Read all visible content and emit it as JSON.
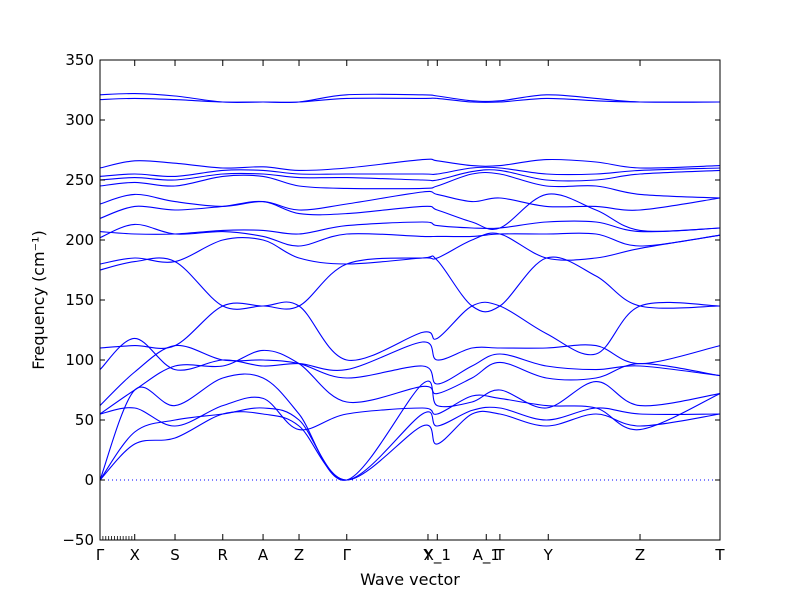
{
  "chart_data": {
    "type": "line",
    "xlabel": "Wave vector",
    "ylabel": "Frequency (cm⁻¹)",
    "ylim": [
      -50,
      350
    ],
    "yticks": [
      -50,
      0,
      50,
      100,
      150,
      200,
      250,
      300,
      350
    ],
    "xlim": [
      0,
      1
    ],
    "grid": false,
    "legend": "none",
    "line_color": "#0000ff",
    "zero_line": {
      "y": 0,
      "style": "dotted",
      "color": "#0000ff"
    },
    "high_symmetry_points": [
      {
        "label": "Γ",
        "x": 0.0
      },
      {
        "label": "X",
        "x": 0.056
      },
      {
        "label": "S",
        "x": 0.121
      },
      {
        "label": "R",
        "x": 0.198
      },
      {
        "label": "A",
        "x": 0.263
      },
      {
        "label": "Z",
        "x": 0.321
      },
      {
        "label": "Γ",
        "x": 0.398
      },
      {
        "label": "Y",
        "x": 0.529
      },
      {
        "label": "X_1",
        "x": 0.544
      },
      {
        "label": "A_1",
        "x": 0.623
      },
      {
        "label": "T",
        "x": 0.645
      },
      {
        "label": "Y",
        "x": 0.723
      },
      {
        "label": "Z",
        "x": 0.871
      },
      {
        "label": "T",
        "x": 1.0
      }
    ],
    "series": [
      {
        "values": [
          [
            0,
            0
          ],
          [
            0.056,
            30
          ],
          [
            0.121,
            35
          ],
          [
            0.198,
            55
          ],
          [
            0.263,
            55
          ],
          [
            0.321,
            45
          ],
          [
            0.398,
            0
          ],
          [
            0.52,
            45
          ],
          [
            0.544,
            30
          ],
          [
            0.6,
            55
          ],
          [
            0.645,
            55
          ],
          [
            0.72,
            45
          ],
          [
            0.8,
            55
          ],
          [
            0.871,
            45
          ],
          [
            1.0,
            55
          ]
        ]
      },
      {
        "values": [
          [
            0,
            0
          ],
          [
            0.056,
            40
          ],
          [
            0.121,
            50
          ],
          [
            0.198,
            55
          ],
          [
            0.263,
            60
          ],
          [
            0.321,
            50
          ],
          [
            0.398,
            0
          ],
          [
            0.52,
            55
          ],
          [
            0.544,
            45
          ],
          [
            0.6,
            58
          ],
          [
            0.645,
            60
          ],
          [
            0.72,
            50
          ],
          [
            0.8,
            60
          ],
          [
            0.871,
            55
          ],
          [
            1.0,
            55
          ]
        ]
      },
      {
        "values": [
          [
            0,
            0
          ],
          [
            0.056,
            75
          ],
          [
            0.121,
            62
          ],
          [
            0.198,
            85
          ],
          [
            0.263,
            85
          ],
          [
            0.321,
            55
          ],
          [
            0.398,
            0
          ],
          [
            0.52,
            80
          ],
          [
            0.544,
            62
          ],
          [
            0.6,
            65
          ],
          [
            0.645,
            75
          ],
          [
            0.72,
            60
          ],
          [
            0.8,
            82
          ],
          [
            0.871,
            62
          ],
          [
            1.0,
            72
          ]
        ]
      },
      {
        "values": [
          [
            0,
            55
          ],
          [
            0.056,
            60
          ],
          [
            0.121,
            45
          ],
          [
            0.198,
            62
          ],
          [
            0.263,
            68
          ],
          [
            0.321,
            42
          ],
          [
            0.398,
            55
          ],
          [
            0.52,
            60
          ],
          [
            0.544,
            55
          ],
          [
            0.6,
            70
          ],
          [
            0.645,
            68
          ],
          [
            0.72,
            62
          ],
          [
            0.8,
            60
          ],
          [
            0.871,
            42
          ],
          [
            1.0,
            72
          ]
        ]
      },
      {
        "values": [
          [
            0,
            55
          ],
          [
            0.056,
            75
          ],
          [
            0.121,
            95
          ],
          [
            0.198,
            95
          ],
          [
            0.263,
            108
          ],
          [
            0.321,
            97
          ],
          [
            0.398,
            65
          ],
          [
            0.52,
            78
          ],
          [
            0.544,
            72
          ],
          [
            0.6,
            85
          ],
          [
            0.645,
            98
          ],
          [
            0.72,
            85
          ],
          [
            0.8,
            85
          ],
          [
            0.871,
            97
          ],
          [
            1.0,
            87
          ]
        ]
      },
      {
        "values": [
          [
            0,
            62
          ],
          [
            0.056,
            90
          ],
          [
            0.121,
            112
          ],
          [
            0.198,
            100
          ],
          [
            0.263,
            100
          ],
          [
            0.321,
            97
          ],
          [
            0.398,
            85
          ],
          [
            0.52,
            95
          ],
          [
            0.544,
            80
          ],
          [
            0.6,
            95
          ],
          [
            0.645,
            105
          ],
          [
            0.72,
            95
          ],
          [
            0.8,
            92
          ],
          [
            0.871,
            95
          ],
          [
            1.0,
            87
          ]
        ]
      },
      {
        "values": [
          [
            0,
            92
          ],
          [
            0.056,
            118
          ],
          [
            0.121,
            92
          ],
          [
            0.198,
            100
          ],
          [
            0.263,
            95
          ],
          [
            0.321,
            97
          ],
          [
            0.398,
            92
          ],
          [
            0.52,
            115
          ],
          [
            0.544,
            100
          ],
          [
            0.6,
            110
          ],
          [
            0.645,
            110
          ],
          [
            0.72,
            110
          ],
          [
            0.8,
            112
          ],
          [
            0.871,
            97
          ],
          [
            1.0,
            112
          ]
        ]
      },
      {
        "values": [
          [
            0,
            110
          ],
          [
            0.056,
            112
          ],
          [
            0.121,
            112
          ],
          [
            0.198,
            145
          ],
          [
            0.263,
            145
          ],
          [
            0.321,
            145
          ],
          [
            0.398,
            100
          ],
          [
            0.52,
            123
          ],
          [
            0.544,
            118
          ],
          [
            0.6,
            145
          ],
          [
            0.645,
            145
          ],
          [
            0.72,
            122
          ],
          [
            0.8,
            105
          ],
          [
            0.871,
            145
          ],
          [
            1.0,
            145
          ]
        ]
      },
      {
        "values": [
          [
            0,
            175
          ],
          [
            0.056,
            182
          ],
          [
            0.121,
            182
          ],
          [
            0.198,
            145
          ],
          [
            0.263,
            145
          ],
          [
            0.321,
            145
          ],
          [
            0.398,
            180
          ],
          [
            0.52,
            185
          ],
          [
            0.544,
            183
          ],
          [
            0.6,
            145
          ],
          [
            0.645,
            145
          ],
          [
            0.72,
            185
          ],
          [
            0.8,
            170
          ],
          [
            0.871,
            145
          ],
          [
            1.0,
            145
          ]
        ]
      },
      {
        "values": [
          [
            0,
            180
          ],
          [
            0.056,
            185
          ],
          [
            0.121,
            182
          ],
          [
            0.198,
            200
          ],
          [
            0.263,
            200
          ],
          [
            0.321,
            185
          ],
          [
            0.398,
            180
          ],
          [
            0.52,
            185
          ],
          [
            0.544,
            185
          ],
          [
            0.6,
            200
          ],
          [
            0.645,
            205
          ],
          [
            0.72,
            185
          ],
          [
            0.8,
            185
          ],
          [
            0.871,
            193
          ],
          [
            1.0,
            204
          ]
        ]
      },
      {
        "values": [
          [
            0,
            202
          ],
          [
            0.056,
            213
          ],
          [
            0.121,
            205
          ],
          [
            0.198,
            207
          ],
          [
            0.263,
            203
          ],
          [
            0.321,
            195
          ],
          [
            0.398,
            205
          ],
          [
            0.52,
            203
          ],
          [
            0.544,
            203
          ],
          [
            0.6,
            203
          ],
          [
            0.645,
            205
          ],
          [
            0.72,
            205
          ],
          [
            0.8,
            205
          ],
          [
            0.871,
            195
          ],
          [
            1.0,
            204
          ]
        ]
      },
      {
        "values": [
          [
            0,
            207
          ],
          [
            0.056,
            205
          ],
          [
            0.121,
            205
          ],
          [
            0.198,
            208
          ],
          [
            0.263,
            208
          ],
          [
            0.321,
            205
          ],
          [
            0.398,
            212
          ],
          [
            0.52,
            215
          ],
          [
            0.544,
            212
          ],
          [
            0.6,
            210
          ],
          [
            0.645,
            210
          ],
          [
            0.72,
            215
          ],
          [
            0.8,
            215
          ],
          [
            0.871,
            207
          ],
          [
            1.0,
            210
          ]
        ]
      },
      {
        "values": [
          [
            0,
            218
          ],
          [
            0.056,
            228
          ],
          [
            0.121,
            225
          ],
          [
            0.198,
            228
          ],
          [
            0.263,
            232
          ],
          [
            0.321,
            222
          ],
          [
            0.398,
            222
          ],
          [
            0.52,
            228
          ],
          [
            0.544,
            225
          ],
          [
            0.6,
            215
          ],
          [
            0.645,
            210
          ],
          [
            0.72,
            238
          ],
          [
            0.8,
            225
          ],
          [
            0.871,
            208
          ],
          [
            1.0,
            210
          ]
        ]
      },
      {
        "values": [
          [
            0,
            230
          ],
          [
            0.056,
            238
          ],
          [
            0.121,
            232
          ],
          [
            0.198,
            228
          ],
          [
            0.263,
            232
          ],
          [
            0.321,
            225
          ],
          [
            0.398,
            230
          ],
          [
            0.52,
            240
          ],
          [
            0.544,
            238
          ],
          [
            0.6,
            232
          ],
          [
            0.645,
            235
          ],
          [
            0.72,
            228
          ],
          [
            0.8,
            228
          ],
          [
            0.871,
            225
          ],
          [
            1.0,
            235
          ]
        ]
      },
      {
        "values": [
          [
            0,
            245
          ],
          [
            0.056,
            248
          ],
          [
            0.121,
            245
          ],
          [
            0.198,
            253
          ],
          [
            0.263,
            253
          ],
          [
            0.321,
            245
          ],
          [
            0.398,
            243
          ],
          [
            0.52,
            243
          ],
          [
            0.544,
            245
          ],
          [
            0.6,
            255
          ],
          [
            0.645,
            255
          ],
          [
            0.72,
            245
          ],
          [
            0.8,
            245
          ],
          [
            0.871,
            238
          ],
          [
            1.0,
            235
          ]
        ]
      },
      {
        "values": [
          [
            0,
            250
          ],
          [
            0.056,
            252
          ],
          [
            0.121,
            250
          ],
          [
            0.198,
            255
          ],
          [
            0.263,
            255
          ],
          [
            0.321,
            252
          ],
          [
            0.398,
            252
          ],
          [
            0.52,
            250
          ],
          [
            0.544,
            250
          ],
          [
            0.6,
            257
          ],
          [
            0.645,
            258
          ],
          [
            0.72,
            250
          ],
          [
            0.8,
            250
          ],
          [
            0.871,
            255
          ],
          [
            1.0,
            258
          ]
        ]
      },
      {
        "values": [
          [
            0,
            253
          ],
          [
            0.056,
            255
          ],
          [
            0.121,
            253
          ],
          [
            0.198,
            258
          ],
          [
            0.263,
            258
          ],
          [
            0.321,
            255
          ],
          [
            0.398,
            255
          ],
          [
            0.52,
            255
          ],
          [
            0.544,
            255
          ],
          [
            0.6,
            260
          ],
          [
            0.645,
            260
          ],
          [
            0.72,
            255
          ],
          [
            0.8,
            255
          ],
          [
            0.871,
            258
          ],
          [
            1.0,
            260
          ]
        ]
      },
      {
        "values": [
          [
            0,
            260
          ],
          [
            0.056,
            266
          ],
          [
            0.121,
            264
          ],
          [
            0.198,
            260
          ],
          [
            0.263,
            261
          ],
          [
            0.321,
            258
          ],
          [
            0.398,
            260
          ],
          [
            0.52,
            267
          ],
          [
            0.544,
            266
          ],
          [
            0.6,
            262
          ],
          [
            0.645,
            262
          ],
          [
            0.72,
            267
          ],
          [
            0.8,
            265
          ],
          [
            0.871,
            260
          ],
          [
            1.0,
            262
          ]
        ]
      },
      {
        "values": [
          [
            0,
            317
          ],
          [
            0.056,
            318
          ],
          [
            0.121,
            317
          ],
          [
            0.198,
            315
          ],
          [
            0.263,
            315
          ],
          [
            0.321,
            315
          ],
          [
            0.398,
            321
          ],
          [
            0.52,
            321
          ],
          [
            0.544,
            320
          ],
          [
            0.6,
            316
          ],
          [
            0.645,
            316
          ],
          [
            0.72,
            321
          ],
          [
            0.8,
            318
          ],
          [
            0.871,
            315
          ],
          [
            1.0,
            315
          ]
        ]
      },
      {
        "values": [
          [
            0,
            321
          ],
          [
            0.056,
            322
          ],
          [
            0.121,
            320
          ],
          [
            0.198,
            315
          ],
          [
            0.263,
            315
          ],
          [
            0.321,
            315
          ],
          [
            0.398,
            318
          ],
          [
            0.52,
            318
          ],
          [
            0.544,
            318
          ],
          [
            0.6,
            315
          ],
          [
            0.645,
            315
          ],
          [
            0.72,
            318
          ],
          [
            0.8,
            316
          ],
          [
            0.871,
            315
          ],
          [
            1.0,
            315
          ]
        ]
      }
    ]
  }
}
